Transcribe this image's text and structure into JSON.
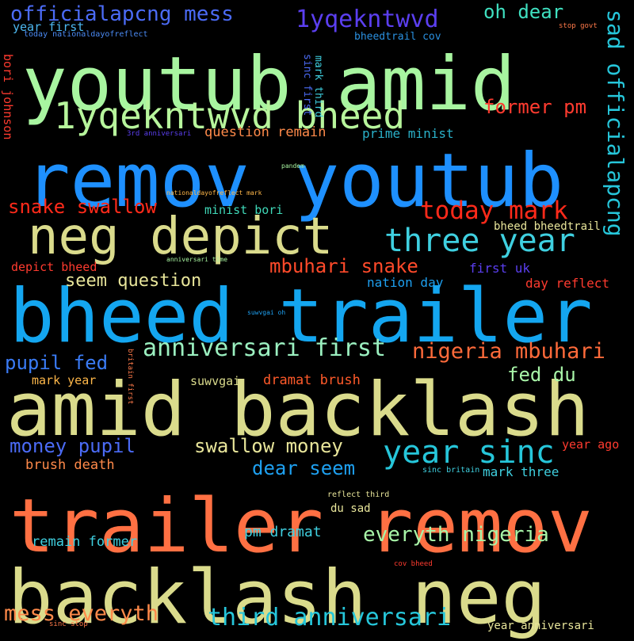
{
  "words": [
    {
      "text": "youtub amid",
      "color": "#a8f5a0"
    },
    {
      "text": "remov youtub",
      "color": "#1e90ff"
    },
    {
      "text": "bheed trailer",
      "color": "#14a6f0"
    },
    {
      "text": "amid backlash",
      "color": "#dadb8c"
    },
    {
      "text": "trailer remov",
      "color": "#ff7043"
    },
    {
      "text": "backlash neg",
      "color": "#dadb8c"
    },
    {
      "text": "neg depict",
      "color": "#dadb8c"
    },
    {
      "text": "1yqekntwvd bheed",
      "color": "#b7f59c"
    },
    {
      "text": "three year",
      "color": "#3fd0e0"
    },
    {
      "text": "year sinc",
      "color": "#26c6da"
    },
    {
      "text": "sad officialapcng",
      "color": "#26c6da"
    },
    {
      "text": "officialapcng mess",
      "color": "#4b6bf5"
    },
    {
      "text": "1yqekntwvd",
      "color": "#5b3ff0"
    },
    {
      "text": "oh dear",
      "color": "#3fe0c0"
    },
    {
      "text": "former pm",
      "color": "#ff3b2f"
    },
    {
      "text": "today mark",
      "color": "#ff2a1a"
    },
    {
      "text": "snake swallow",
      "color": "#ff2a1a"
    },
    {
      "text": "mbuhari snake",
      "color": "#ff4a2a"
    },
    {
      "text": "anniversari first",
      "color": "#9bf0c0"
    },
    {
      "text": "nigeria mbuhari",
      "color": "#ff6a3a"
    },
    {
      "text": "seem question",
      "color": "#e8e59a"
    },
    {
      "text": "pupil fed",
      "color": "#3a7bf5"
    },
    {
      "text": "fed du",
      "color": "#a8f5a8"
    },
    {
      "text": "money pupil",
      "color": "#4b6bf5"
    },
    {
      "text": "swallow money",
      "color": "#e8e59a"
    },
    {
      "text": "dear seem",
      "color": "#1ea0f0"
    },
    {
      "text": "everyth nigeria",
      "color": "#a8f5a8"
    },
    {
      "text": "mess everyth",
      "color": "#ff8a4a"
    },
    {
      "text": "third anniversari",
      "color": "#26c6da"
    },
    {
      "text": "question remain",
      "color": "#ff8a4a"
    },
    {
      "text": "prime minist",
      "color": "#2ab0c8"
    },
    {
      "text": "minist bori",
      "color": "#3fd8b8"
    },
    {
      "text": "bheed bheedtrail",
      "color": "#e8e59a"
    },
    {
      "text": "first uk",
      "color": "#5b3ff0"
    },
    {
      "text": "nation day",
      "color": "#1ea0f0"
    },
    {
      "text": "day reflect",
      "color": "#ff3b2f"
    },
    {
      "text": "depict bheed",
      "color": "#ff3b2f"
    },
    {
      "text": "year first",
      "color": "#4db8f0"
    },
    {
      "text": "today nationaldayofreflect",
      "color": "#4b8bf5"
    },
    {
      "text": "bheedtrail cov",
      "color": "#2a90e0"
    },
    {
      "text": "stop govt",
      "color": "#ff7a4a"
    },
    {
      "text": "bori johnson",
      "color": "#ff3b2f"
    },
    {
      "text": "sinc first",
      "color": "#4b6bf5"
    },
    {
      "text": "mark third",
      "color": "#3fd0e0"
    },
    {
      "text": "3rd anniversari",
      "color": "#5b3ff0"
    },
    {
      "text": "pandem",
      "color": "#a8f5a0"
    },
    {
      "text": "nationaldayofreflect mark",
      "color": "#ffb84a"
    },
    {
      "text": "anniversari time",
      "color": "#a8f5a0"
    },
    {
      "text": "suwvgai oh",
      "color": "#1ea0f0"
    },
    {
      "text": "britain first",
      "color": "#ff7a4a"
    },
    {
      "text": "mark year",
      "color": "#ffb84a"
    },
    {
      "text": "suwvgai",
      "color": "#dadb8c"
    },
    {
      "text": "dramat brush",
      "color": "#ff5a2a"
    },
    {
      "text": "brush death",
      "color": "#ff8a4a"
    },
    {
      "text": "year ago",
      "color": "#ff3b2f"
    },
    {
      "text": "sinc britain",
      "color": "#3fd0e0"
    },
    {
      "text": "mark three",
      "color": "#3fd0e0"
    },
    {
      "text": "reflect third",
      "color": "#e8e59a"
    },
    {
      "text": "du sad",
      "color": "#e8e59a"
    },
    {
      "text": "remain former",
      "color": "#3fd0e0"
    },
    {
      "text": "pm dramat",
      "color": "#3fd0e0"
    },
    {
      "text": "cov bheed",
      "color": "#ff3b2f"
    },
    {
      "text": "sinc stop",
      "color": "#ff7a4a"
    },
    {
      "text": "year anniversari",
      "color": "#e8e59a"
    }
  ]
}
